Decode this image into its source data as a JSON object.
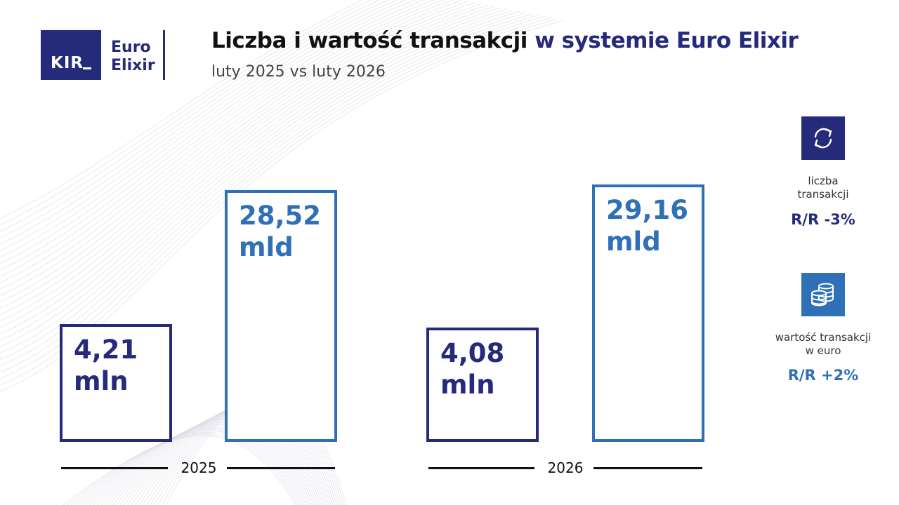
{
  "logo": {
    "kir": "KIR",
    "line1": "Euro",
    "line2": "Elixir"
  },
  "header": {
    "title_main": "Liczba i wartość transakcji",
    "title_accent": "w systemie Euro Elixir",
    "subtitle": "luty 2025 vs luty 2026"
  },
  "chart_data": {
    "type": "bar",
    "categories": [
      "2025",
      "2026"
    ],
    "series": [
      {
        "values": [
          4.21,
          4.08
        ],
        "labels": [
          [
            "4,21",
            "mln"
          ],
          [
            "4,08",
            "mln"
          ]
        ]
      },
      {
        "values": [
          28.52,
          29.16
        ],
        "labels": [
          [
            "28,52",
            "mld"
          ],
          [
            "29,16",
            "mld"
          ]
        ]
      }
    ],
    "colors": {
      "count": "#262a7b",
      "value": "#2f70b6"
    }
  },
  "sidebar": {
    "count": {
      "icon": "arrows-cycle-icon",
      "caption_line1": "liczba",
      "caption_line2": "transakcji",
      "stat": "R/R -3%"
    },
    "value": {
      "icon": "coins-stack-icon",
      "caption_line1": "wartość transakcji",
      "caption_line2": "w euro",
      "stat": "R/R +2%"
    }
  }
}
